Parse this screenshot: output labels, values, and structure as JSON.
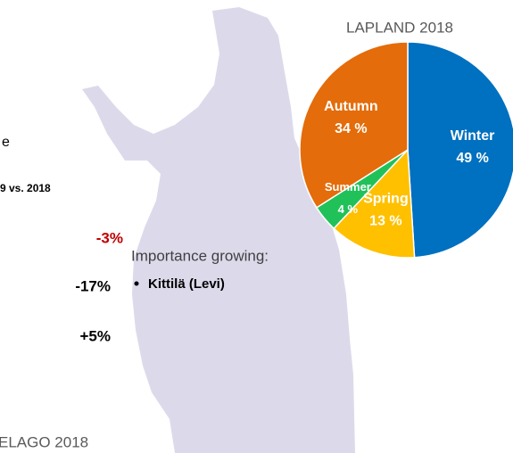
{
  "chart_data": {
    "type": "pie",
    "title": "LAPLAND 2018",
    "categories": [
      "Winter",
      "Spring",
      "Summer",
      "Autumn"
    ],
    "values": [
      49,
      13,
      4,
      34
    ],
    "value_labels": [
      "49 %",
      "13 %",
      "4 %",
      "34 %"
    ],
    "colors": [
      "#0070c0",
      "#ffc000",
      "#21c15a",
      "#e46c0a"
    ]
  },
  "texts": {
    "cut_heading": "e",
    "comparison": "9 vs. 2018",
    "changes": [
      "-3%",
      "-17%",
      "+5%"
    ],
    "importance_heading": "Importance growing:",
    "importance_items": [
      "Kittilä (Levi)"
    ],
    "bottom_title": "ELAGO 2018"
  }
}
